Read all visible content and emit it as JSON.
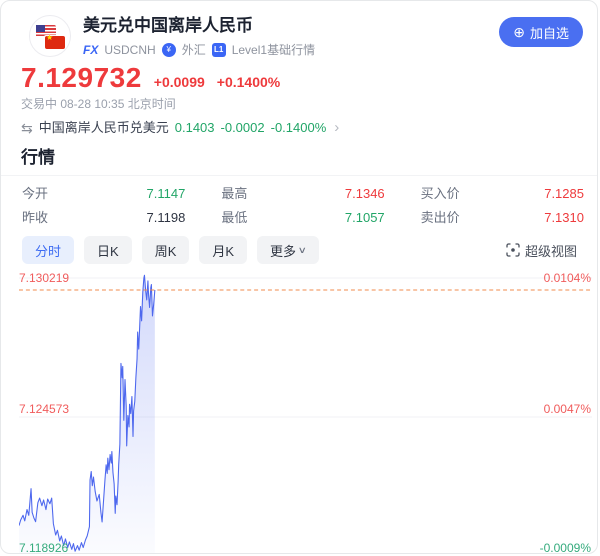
{
  "header": {
    "title": "美元兑中国离岸人民币",
    "tags": {
      "fx_label": "FX",
      "symbol": "USDCNH",
      "forex_label": "外汇",
      "l1_icon_label": "L1",
      "level_label": "Level1基础行情"
    },
    "add_watchlist_label": "加自选"
  },
  "icons": {
    "add": "⊕",
    "swap": "⇆",
    "chevron": "›",
    "caret": "∨",
    "forex_circle_glyph": "¥",
    "cn_star": "★"
  },
  "quote": {
    "price": "7.129732",
    "change": "+0.0099",
    "change_pct": "+0.1400%",
    "status": "交易中 08-28 10:35 北京时间",
    "up_color": "#ee3a3c",
    "down_color": "#21a567"
  },
  "inverse_pair": {
    "name": "中国离岸人民币兑美元",
    "price": "0.1403",
    "change": "-0.0002",
    "change_pct": "-0.1400%",
    "color": "#21a567"
  },
  "section_title": "行情",
  "stats": [
    {
      "label": "今开",
      "value": "7.1147",
      "color": "#21a567"
    },
    {
      "label": "最高",
      "value": "7.1346",
      "color": "#ee3a3c"
    },
    {
      "label": "买入价",
      "value": "7.1285",
      "color": "#ee3a3c"
    },
    {
      "label": "昨收",
      "value": "7.1198",
      "color": "#2e3442"
    },
    {
      "label": "最低",
      "value": "7.1057",
      "color": "#21a567"
    },
    {
      "label": "卖出价",
      "value": "7.1310",
      "color": "#ee3a3c"
    }
  ],
  "tabs": {
    "items": [
      {
        "label": "分时",
        "active": true
      },
      {
        "label": "日K",
        "active": false
      },
      {
        "label": "周K",
        "active": false
      },
      {
        "label": "月K",
        "active": false
      },
      {
        "label": "更多",
        "active": false,
        "caret": true
      }
    ],
    "super_view_label": "超级视图"
  },
  "chart_data": {
    "type": "line",
    "title": "USDCNH 分时",
    "ylim": [
      7.118926,
      7.130219
    ],
    "gridlines": {
      "top": 7.130219,
      "mid": 7.124573,
      "bottom": 7.118926
    },
    "left_labels": [
      {
        "text": "7.130219",
        "color": "#f05c5c"
      },
      {
        "text": "7.124573",
        "color": "#f05c5c"
      },
      {
        "text": "7.118926",
        "color": "#35ab7d"
      }
    ],
    "right_labels": [
      {
        "text": "0.0104%",
        "color": "#f05c5c"
      },
      {
        "text": "0.0047%",
        "color": "#f05c5c"
      },
      {
        "text": "-0.0009%",
        "color": "#35ab7d"
      }
    ],
    "current_price_line": {
      "value": 7.129732,
      "style": "dashed",
      "color": "#f08b4c"
    },
    "line_color": "#4e68ee",
    "legend": "none",
    "points": [
      [
        0.0,
        7.12016
      ],
      [
        0.003,
        7.12039
      ],
      [
        0.007,
        7.12058
      ],
      [
        0.01,
        7.12035
      ],
      [
        0.014,
        7.12081
      ],
      [
        0.017,
        7.12058
      ],
      [
        0.021,
        7.12166
      ],
      [
        0.023,
        7.1207
      ],
      [
        0.026,
        7.12047
      ],
      [
        0.029,
        7.12032
      ],
      [
        0.033,
        7.12109
      ],
      [
        0.036,
        7.12128
      ],
      [
        0.04,
        7.12097
      ],
      [
        0.043,
        7.1212
      ],
      [
        0.047,
        7.12081
      ],
      [
        0.05,
        7.12124
      ],
      [
        0.054,
        7.12105
      ],
      [
        0.057,
        7.12128
      ],
      [
        0.06,
        7.12024
      ],
      [
        0.064,
        7.11978
      ],
      [
        0.067,
        7.11997
      ],
      [
        0.071,
        7.11954
      ],
      [
        0.074,
        7.11974
      ],
      [
        0.078,
        7.11935
      ],
      [
        0.081,
        7.11962
      ],
      [
        0.085,
        7.11927
      ],
      [
        0.088,
        7.1195
      ],
      [
        0.092,
        7.1192
      ],
      [
        0.095,
        7.11943
      ],
      [
        0.098,
        7.11912
      ],
      [
        0.102,
        7.11935
      ],
      [
        0.105,
        7.11916
      ],
      [
        0.109,
        7.11947
      ],
      [
        0.112,
        7.11927
      ],
      [
        0.116,
        7.11958
      ],
      [
        0.119,
        7.11974
      ],
      [
        0.123,
        7.12012
      ],
      [
        0.124,
        7.12201
      ],
      [
        0.126,
        7.12236
      ],
      [
        0.128,
        7.12178
      ],
      [
        0.13,
        7.12213
      ],
      [
        0.133,
        7.12155
      ],
      [
        0.136,
        7.12116
      ],
      [
        0.14,
        7.12143
      ],
      [
        0.143,
        7.1207
      ],
      [
        0.145,
        7.12031
      ],
      [
        0.147,
        7.12101
      ],
      [
        0.15,
        7.12201
      ],
      [
        0.152,
        7.12263
      ],
      [
        0.154,
        7.12228
      ],
      [
        0.155,
        7.1229
      ],
      [
        0.157,
        7.12243
      ],
      [
        0.159,
        7.12305
      ],
      [
        0.161,
        7.1227
      ],
      [
        0.162,
        7.12317
      ],
      [
        0.164,
        7.12232
      ],
      [
        0.166,
        7.12186
      ],
      [
        0.168,
        7.12066
      ],
      [
        0.169,
        7.12136
      ],
      [
        0.171,
        7.12101
      ],
      [
        0.173,
        7.12193
      ],
      [
        0.174,
        7.12263
      ],
      [
        0.176,
        7.12347
      ],
      [
        0.178,
        7.12675
      ],
      [
        0.18,
        7.12617
      ],
      [
        0.181,
        7.12663
      ],
      [
        0.183,
        7.12444
      ],
      [
        0.185,
        7.12609
      ],
      [
        0.187,
        7.12502
      ],
      [
        0.188,
        7.1234
      ],
      [
        0.19,
        7.12463
      ],
      [
        0.192,
        7.12417
      ],
      [
        0.193,
        7.12509
      ],
      [
        0.195,
        7.12471
      ],
      [
        0.197,
        7.1254
      ],
      [
        0.199,
        7.12378
      ],
      [
        0.2,
        7.12482
      ],
      [
        0.202,
        7.12521
      ],
      [
        0.204,
        7.12617
      ],
      [
        0.206,
        7.12694
      ],
      [
        0.207,
        7.12802
      ],
      [
        0.209,
        7.12733
      ],
      [
        0.211,
        7.12848
      ],
      [
        0.212,
        7.12906
      ],
      [
        0.214,
        7.12848
      ],
      [
        0.216,
        7.12964
      ],
      [
        0.218,
        7.13022
      ],
      [
        0.219,
        7.13033
      ],
      [
        0.221,
        7.12971
      ],
      [
        0.223,
        7.12933
      ],
      [
        0.225,
        7.1301
      ],
      [
        0.226,
        7.12956
      ],
      [
        0.228,
        7.12902
      ],
      [
        0.23,
        7.12983
      ],
      [
        0.231,
        7.12995
      ],
      [
        0.233,
        7.12868
      ],
      [
        0.235,
        7.12914
      ],
      [
        0.237,
        7.12973
      ]
    ]
  }
}
